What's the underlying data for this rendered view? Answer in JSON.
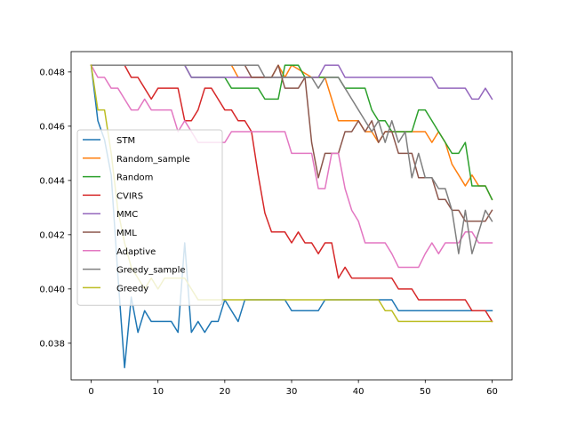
{
  "chart_data": {
    "type": "line",
    "title": "",
    "xlabel": "",
    "ylabel": "",
    "xlim": [
      -3,
      63
    ],
    "ylim": [
      0.03665,
      0.04875
    ],
    "xticks": [
      0,
      10,
      20,
      30,
      40,
      50,
      60
    ],
    "yticks": [
      0.038,
      0.04,
      0.042,
      0.044,
      0.046,
      0.048
    ],
    "ytick_labels": [
      "0.038",
      "0.040",
      "0.042",
      "0.044",
      "0.046",
      "0.048"
    ],
    "grid": false,
    "legend_position": "center-left",
    "series": [
      {
        "name": "STM",
        "color": "#1f77b4",
        "points": [
          [
            0,
            0.04825
          ],
          [
            1,
            0.0462
          ],
          [
            2,
            0.0455
          ],
          [
            3,
            0.0442
          ],
          [
            4,
            0.0405
          ],
          [
            5,
            0.0371
          ],
          [
            6,
            0.0397
          ],
          [
            7,
            0.0384
          ],
          [
            8,
            0.0392
          ],
          [
            9,
            0.0388
          ],
          [
            10,
            0.0388
          ],
          [
            11,
            0.0388
          ],
          [
            12,
            0.0388
          ],
          [
            13,
            0.0384
          ],
          [
            14,
            0.0417
          ],
          [
            15,
            0.0384
          ],
          [
            16,
            0.0388
          ],
          [
            17,
            0.0384
          ],
          [
            18,
            0.0388
          ],
          [
            19,
            0.0388
          ],
          [
            20,
            0.0396
          ],
          [
            21,
            0.0392
          ],
          [
            22,
            0.0388
          ],
          [
            23,
            0.0396
          ],
          [
            24,
            0.0396
          ],
          [
            29,
            0.0396
          ],
          [
            30,
            0.0392
          ],
          [
            34,
            0.0392
          ],
          [
            35,
            0.0396
          ],
          [
            44,
            0.0396
          ],
          [
            45,
            0.0396
          ],
          [
            46,
            0.0392
          ],
          [
            60,
            0.0392
          ]
        ]
      },
      {
        "name": "Random_sample",
        "color": "#ff7f0e",
        "points": [
          [
            0,
            0.04825
          ],
          [
            21,
            0.04825
          ],
          [
            22,
            0.0478
          ],
          [
            27,
            0.0478
          ],
          [
            28,
            0.04825
          ],
          [
            29,
            0.0478
          ],
          [
            30,
            0.04825
          ],
          [
            33,
            0.0478
          ],
          [
            35,
            0.0478
          ],
          [
            36,
            0.047
          ],
          [
            37,
            0.0462
          ],
          [
            40,
            0.0462
          ],
          [
            41,
            0.0458
          ],
          [
            42,
            0.0458
          ],
          [
            43,
            0.0454
          ],
          [
            44,
            0.0458
          ],
          [
            45,
            0.0458
          ],
          [
            50,
            0.0458
          ],
          [
            51,
            0.0454
          ],
          [
            52,
            0.0458
          ],
          [
            53,
            0.0454
          ],
          [
            54,
            0.0446
          ],
          [
            56,
            0.0438
          ],
          [
            57,
            0.0442
          ],
          [
            58,
            0.0438
          ],
          [
            59,
            0.0438
          ],
          [
            60,
            0.0433
          ]
        ]
      },
      {
        "name": "Random",
        "color": "#2ca02c",
        "points": [
          [
            0,
            0.04825
          ],
          [
            14,
            0.04825
          ],
          [
            15,
            0.0478
          ],
          [
            20,
            0.0478
          ],
          [
            21,
            0.0474
          ],
          [
            25,
            0.0474
          ],
          [
            26,
            0.047
          ],
          [
            28,
            0.047
          ],
          [
            29,
            0.04825
          ],
          [
            31,
            0.04825
          ],
          [
            32,
            0.0478
          ],
          [
            37,
            0.0478
          ],
          [
            38,
            0.0474
          ],
          [
            41,
            0.0474
          ],
          [
            42,
            0.0466
          ],
          [
            43,
            0.0462
          ],
          [
            44,
            0.0462
          ],
          [
            45,
            0.0458
          ],
          [
            47,
            0.0458
          ],
          [
            48,
            0.0458
          ],
          [
            49,
            0.0466
          ],
          [
            50,
            0.0466
          ],
          [
            51,
            0.0462
          ],
          [
            52,
            0.0458
          ],
          [
            53,
            0.0454
          ],
          [
            54,
            0.045
          ],
          [
            55,
            0.045
          ],
          [
            56,
            0.0454
          ],
          [
            57,
            0.0438
          ],
          [
            59,
            0.0438
          ],
          [
            60,
            0.0433
          ]
        ]
      },
      {
        "name": "CVIRS",
        "color": "#d62728",
        "points": [
          [
            0,
            0.04825
          ],
          [
            5,
            0.04825
          ],
          [
            6,
            0.0478
          ],
          [
            7,
            0.0478
          ],
          [
            8,
            0.0474
          ],
          [
            9,
            0.047
          ],
          [
            10,
            0.0474
          ],
          [
            13,
            0.0474
          ],
          [
            14,
            0.0462
          ],
          [
            15,
            0.0462
          ],
          [
            16,
            0.0466
          ],
          [
            17,
            0.0474
          ],
          [
            18,
            0.0474
          ],
          [
            19,
            0.047
          ],
          [
            20,
            0.0466
          ],
          [
            21,
            0.0466
          ],
          [
            22,
            0.0462
          ],
          [
            23,
            0.0462
          ],
          [
            24,
            0.0458
          ],
          [
            25,
            0.0442
          ],
          [
            26,
            0.0428
          ],
          [
            27,
            0.0421
          ],
          [
            29,
            0.0421
          ],
          [
            30,
            0.0417
          ],
          [
            31,
            0.0421
          ],
          [
            32,
            0.0417
          ],
          [
            33,
            0.0417
          ],
          [
            34,
            0.0413
          ],
          [
            35,
            0.0417
          ],
          [
            36,
            0.0417
          ],
          [
            37,
            0.0404
          ],
          [
            38,
            0.0408
          ],
          [
            39,
            0.0404
          ],
          [
            45,
            0.0404
          ],
          [
            46,
            0.04
          ],
          [
            48,
            0.04
          ],
          [
            49,
            0.0396
          ],
          [
            56,
            0.0396
          ],
          [
            57,
            0.0392
          ],
          [
            59,
            0.0392
          ],
          [
            60,
            0.0388
          ]
        ]
      },
      {
        "name": "MMC",
        "color": "#9467bd",
        "points": [
          [
            0,
            0.04825
          ],
          [
            14,
            0.04825
          ],
          [
            15,
            0.0478
          ],
          [
            33,
            0.0478
          ],
          [
            34,
            0.0478
          ],
          [
            35,
            0.04825
          ],
          [
            37,
            0.04825
          ],
          [
            38,
            0.0478
          ],
          [
            51,
            0.0478
          ],
          [
            52,
            0.0474
          ],
          [
            56,
            0.0474
          ],
          [
            57,
            0.047
          ],
          [
            58,
            0.047
          ],
          [
            59,
            0.0474
          ],
          [
            60,
            0.047
          ]
        ]
      },
      {
        "name": "MML",
        "color": "#8c564b",
        "points": [
          [
            0,
            0.04825
          ],
          [
            23,
            0.04825
          ],
          [
            24,
            0.0478
          ],
          [
            27,
            0.0478
          ],
          [
            28,
            0.04825
          ],
          [
            29,
            0.0474
          ],
          [
            31,
            0.0474
          ],
          [
            32,
            0.0478
          ],
          [
            33,
            0.0454
          ],
          [
            34,
            0.0441
          ],
          [
            35,
            0.045
          ],
          [
            37,
            0.045
          ],
          [
            38,
            0.0458
          ],
          [
            39,
            0.0458
          ],
          [
            40,
            0.0462
          ],
          [
            41,
            0.0458
          ],
          [
            42,
            0.0462
          ],
          [
            43,
            0.0454
          ],
          [
            44,
            0.0458
          ],
          [
            45,
            0.0458
          ],
          [
            46,
            0.045
          ],
          [
            48,
            0.045
          ],
          [
            49,
            0.0441
          ],
          [
            50,
            0.0441
          ],
          [
            51,
            0.0441
          ],
          [
            52,
            0.0433
          ],
          [
            53,
            0.0433
          ],
          [
            54,
            0.0429
          ],
          [
            55,
            0.0429
          ],
          [
            56,
            0.0425
          ],
          [
            59,
            0.0425
          ],
          [
            60,
            0.0429
          ]
        ]
      },
      {
        "name": "Adaptive",
        "color": "#e377c2",
        "points": [
          [
            0,
            0.04825
          ],
          [
            1,
            0.0478
          ],
          [
            2,
            0.0478
          ],
          [
            3,
            0.0474
          ],
          [
            4,
            0.0474
          ],
          [
            5,
            0.047
          ],
          [
            6,
            0.0466
          ],
          [
            7,
            0.0466
          ],
          [
            8,
            0.047
          ],
          [
            9,
            0.0466
          ],
          [
            12,
            0.0466
          ],
          [
            13,
            0.0458
          ],
          [
            14,
            0.0462
          ],
          [
            16,
            0.0454
          ],
          [
            20,
            0.0454
          ],
          [
            21,
            0.0458
          ],
          [
            29,
            0.0458
          ],
          [
            30,
            0.045
          ],
          [
            33,
            0.045
          ],
          [
            34,
            0.0437
          ],
          [
            35,
            0.0437
          ],
          [
            36,
            0.045
          ],
          [
            37,
            0.045
          ],
          [
            38,
            0.0437
          ],
          [
            39,
            0.0429
          ],
          [
            40,
            0.0425
          ],
          [
            41,
            0.0417
          ],
          [
            44,
            0.0417
          ],
          [
            45,
            0.0413
          ],
          [
            46,
            0.0408
          ],
          [
            49,
            0.0408
          ],
          [
            50,
            0.0413
          ],
          [
            51,
            0.0417
          ],
          [
            52,
            0.0413
          ],
          [
            53,
            0.0417
          ],
          [
            55,
            0.0417
          ],
          [
            56,
            0.0421
          ],
          [
            57,
            0.0421
          ],
          [
            58,
            0.0417
          ],
          [
            60,
            0.0417
          ]
        ]
      },
      {
        "name": "Greedy_sample",
        "color": "#7f7f7f",
        "points": [
          [
            0,
            0.04825
          ],
          [
            25,
            0.04825
          ],
          [
            26,
            0.0478
          ],
          [
            33,
            0.0478
          ],
          [
            34,
            0.0474
          ],
          [
            35,
            0.0478
          ],
          [
            37,
            0.0478
          ],
          [
            38,
            0.0474
          ],
          [
            39,
            0.047
          ],
          [
            40,
            0.0466
          ],
          [
            41,
            0.0462
          ],
          [
            42,
            0.0458
          ],
          [
            43,
            0.0462
          ],
          [
            44,
            0.0454
          ],
          [
            45,
            0.0462
          ],
          [
            46,
            0.0454
          ],
          [
            47,
            0.0458
          ],
          [
            48,
            0.0441
          ],
          [
            49,
            0.045
          ],
          [
            50,
            0.0441
          ],
          [
            51,
            0.0441
          ],
          [
            52,
            0.0437
          ],
          [
            53,
            0.0437
          ],
          [
            54,
            0.0429
          ],
          [
            55,
            0.0413
          ],
          [
            56,
            0.0429
          ],
          [
            57,
            0.0413
          ],
          [
            58,
            0.0421
          ],
          [
            59,
            0.0429
          ],
          [
            60,
            0.0425
          ]
        ]
      },
      {
        "name": "Greedy",
        "color": "#bcbd22",
        "points": [
          [
            0,
            0.04825
          ],
          [
            1,
            0.0466
          ],
          [
            2,
            0.0466
          ],
          [
            3,
            0.045
          ],
          [
            4,
            0.0429
          ],
          [
            5,
            0.0417
          ],
          [
            6,
            0.0408
          ],
          [
            7,
            0.0404
          ],
          [
            8,
            0.04
          ],
          [
            9,
            0.0404
          ],
          [
            10,
            0.04
          ],
          [
            11,
            0.0404
          ],
          [
            12,
            0.0404
          ],
          [
            14,
            0.0404
          ],
          [
            15,
            0.04
          ],
          [
            16,
            0.0396
          ],
          [
            43,
            0.0396
          ],
          [
            44,
            0.0392
          ],
          [
            45,
            0.0392
          ],
          [
            46,
            0.0388
          ],
          [
            60,
            0.0388
          ]
        ]
      }
    ]
  }
}
